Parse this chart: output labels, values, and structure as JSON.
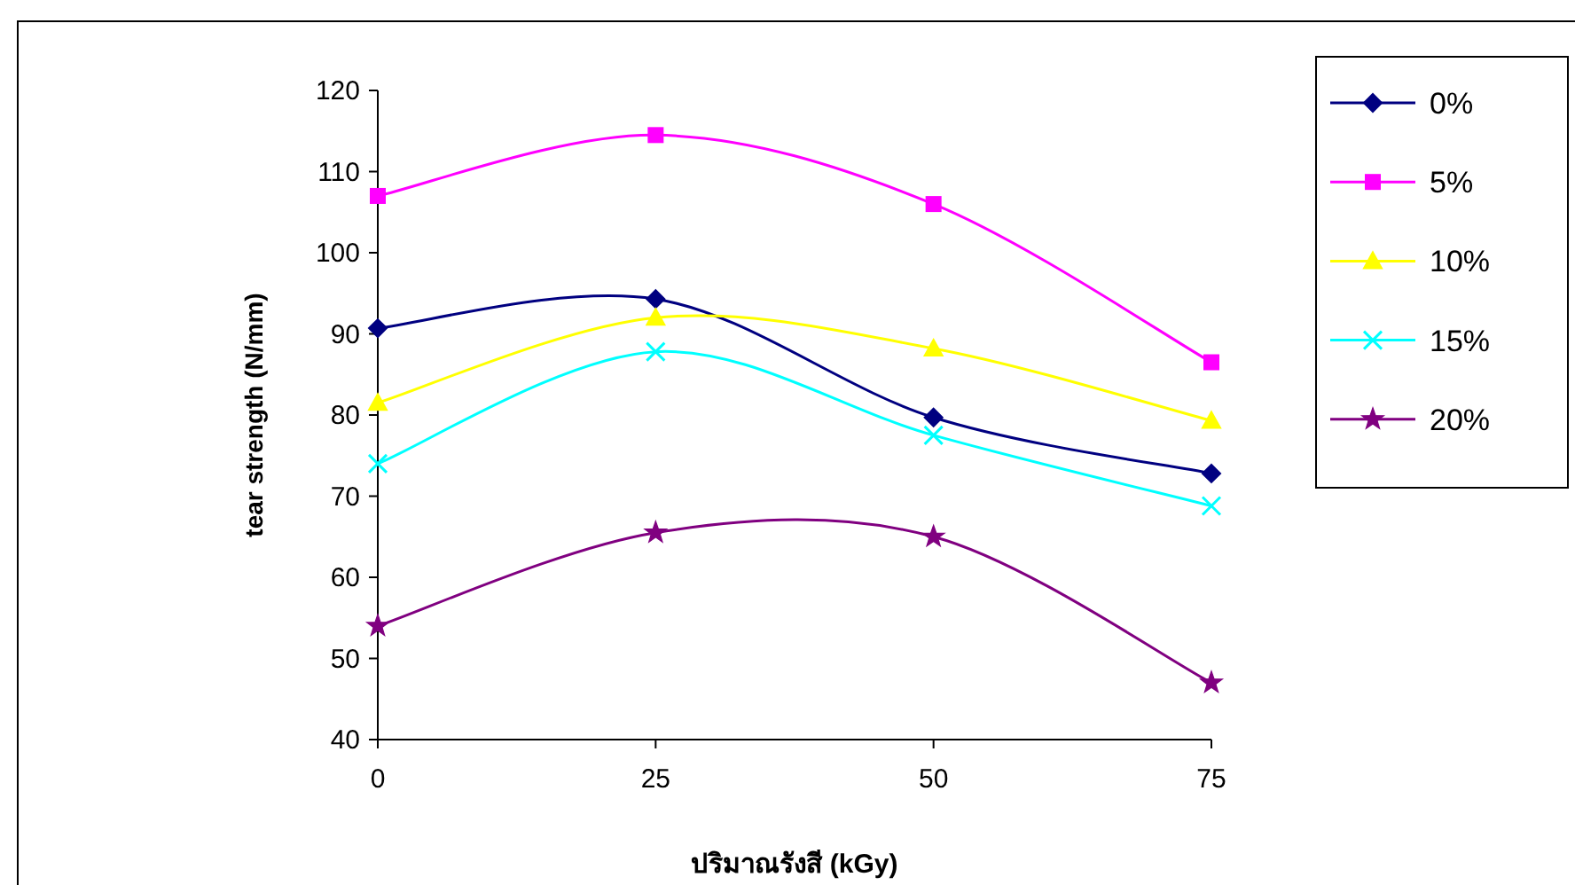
{
  "chart_data": {
    "type": "line",
    "xlabel": "ปริมาณรังสี (kGy)",
    "ylabel": "tear strength (N/mm)",
    "x": [
      0,
      25,
      50,
      75
    ],
    "xlim": [
      0,
      75
    ],
    "xticks": [
      0,
      25,
      50,
      75
    ],
    "ylim": [
      40,
      120
    ],
    "yticks": [
      40,
      50,
      60,
      70,
      80,
      90,
      100,
      110,
      120
    ],
    "grid": false,
    "legend": "right",
    "series": [
      {
        "name": "0%",
        "color": "#000080",
        "marker": "diamond",
        "values": [
          90.7,
          94.3,
          79.7,
          72.8
        ]
      },
      {
        "name": "5%",
        "color": "#ff00ff",
        "marker": "square",
        "values": [
          107,
          114.5,
          106,
          86.5
        ]
      },
      {
        "name": "10%",
        "color": "#ffff00",
        "marker": "triangle",
        "values": [
          81.5,
          92,
          88.2,
          79.3
        ]
      },
      {
        "name": "15%",
        "color": "#00ffff",
        "marker": "cross",
        "values": [
          74,
          87.8,
          77.5,
          68.8
        ]
      },
      {
        "name": "20%",
        "color": "#800080",
        "marker": "star",
        "values": [
          54,
          65.5,
          65,
          47
        ]
      }
    ]
  }
}
